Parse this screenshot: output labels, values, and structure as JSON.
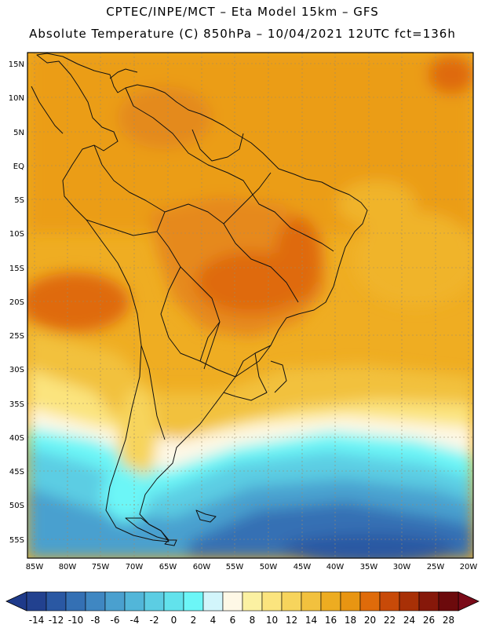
{
  "header": {
    "line1": "CPTEC/INPE/MCT –  Eta Model 15km – GFS",
    "line2": "Absolute Temperature (C) 850hPa – 10/04/2021 12UTC fct=136h"
  },
  "map": {
    "lat_labels": [
      "15N",
      "10N",
      "5N",
      "EQ",
      "5S",
      "10S",
      "15S",
      "20S",
      "25S",
      "30S",
      "35S",
      "40S",
      "45S",
      "50S",
      "55S"
    ],
    "lon_labels": [
      "85W",
      "80W",
      "75W",
      "70W",
      "65W",
      "60W",
      "55W",
      "50W",
      "45W",
      "40W",
      "35W",
      "30W",
      "25W",
      "20W"
    ]
  },
  "colorbar": {
    "labels": [
      "-14",
      "-12",
      "-10",
      "-8",
      "-6",
      "-4",
      "-2",
      "0",
      "2",
      "4",
      "6",
      "8",
      "10",
      "12",
      "14",
      "16",
      "18",
      "20",
      "22",
      "24",
      "26",
      "28"
    ],
    "colors": [
      "#22418f",
      "#2a58a3",
      "#3470b4",
      "#3f87c2",
      "#4aa0cf",
      "#52b6d9",
      "#5ccde3",
      "#62e2ec",
      "#6cf6f7",
      "#d2f5fb",
      "#fef8e6",
      "#fbf1a2",
      "#fbe47e",
      "#f7d45c",
      "#f2c13e",
      "#edac21",
      "#e89512",
      "#df6b0a",
      "#c84a08",
      "#a83006",
      "#86180a",
      "#6c0a0c"
    ],
    "under_color": "#1e3a8a",
    "over_color": "#7a0a18"
  }
}
